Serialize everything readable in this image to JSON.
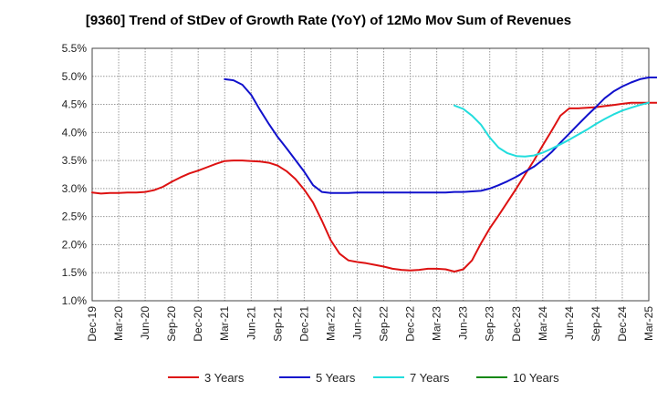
{
  "chart_data": {
    "type": "line",
    "title": "[9360]  Trend of StDev of Growth Rate (YoY) of 12Mo Mov Sum of Revenues",
    "xlabel": "",
    "ylabel": "",
    "ylim": [
      1.0,
      5.5
    ],
    "yticks": [
      "1.0%",
      "1.5%",
      "2.0%",
      "2.5%",
      "3.0%",
      "3.5%",
      "4.0%",
      "4.5%",
      "5.0%",
      "5.5%"
    ],
    "x_tick_labels": [
      "Dec-19",
      "Mar-20",
      "Jun-20",
      "Sep-20",
      "Dec-20",
      "Mar-21",
      "Jun-21",
      "Sep-21",
      "Dec-21",
      "Mar-22",
      "Jun-22",
      "Sep-22",
      "Dec-22",
      "Mar-23",
      "Jun-23",
      "Sep-23",
      "Dec-23",
      "Mar-24",
      "Jun-24",
      "Sep-24",
      "Dec-24",
      "Mar-25"
    ],
    "x_unit": "months since Dec-19",
    "grid": true,
    "legend_position": "bottom",
    "series": [
      {
        "name": "3 Years",
        "color": "#dd1111",
        "points": [
          [
            0,
            2.93
          ],
          [
            1,
            2.91
          ],
          [
            2,
            2.92
          ],
          [
            3,
            2.92
          ],
          [
            4,
            2.93
          ],
          [
            5,
            2.93
          ],
          [
            6,
            2.94
          ],
          [
            7,
            2.97
          ],
          [
            8,
            3.03
          ],
          [
            9,
            3.12
          ],
          [
            10,
            3.2
          ],
          [
            11,
            3.27
          ],
          [
            12,
            3.32
          ],
          [
            13,
            3.38
          ],
          [
            14,
            3.44
          ],
          [
            15,
            3.49
          ],
          [
            16,
            3.5
          ],
          [
            17,
            3.5
          ],
          [
            18,
            3.49
          ],
          [
            19,
            3.48
          ],
          [
            20,
            3.46
          ],
          [
            21,
            3.41
          ],
          [
            22,
            3.31
          ],
          [
            23,
            3.17
          ],
          [
            24,
            2.98
          ],
          [
            25,
            2.75
          ],
          [
            26,
            2.43
          ],
          [
            27,
            2.08
          ],
          [
            28,
            1.84
          ],
          [
            29,
            1.72
          ],
          [
            30,
            1.69
          ],
          [
            31,
            1.67
          ],
          [
            32,
            1.64
          ],
          [
            33,
            1.61
          ],
          [
            34,
            1.57
          ],
          [
            35,
            1.55
          ],
          [
            36,
            1.54
          ],
          [
            37,
            1.55
          ],
          [
            38,
            1.57
          ],
          [
            39,
            1.57
          ],
          [
            40,
            1.56
          ],
          [
            41,
            1.52
          ],
          [
            42,
            1.56
          ],
          [
            43,
            1.72
          ],
          [
            44,
            2.02
          ],
          [
            45,
            2.29
          ],
          [
            46,
            2.52
          ],
          [
            47,
            2.76
          ],
          [
            48,
            3.0
          ],
          [
            49,
            3.25
          ],
          [
            50,
            3.5
          ],
          [
            51,
            3.77
          ],
          [
            52,
            4.03
          ],
          [
            53,
            4.3
          ],
          [
            54,
            4.43
          ],
          [
            55,
            4.43
          ],
          [
            56,
            4.44
          ],
          [
            57,
            4.45
          ],
          [
            58,
            4.47
          ],
          [
            59,
            4.49
          ],
          [
            60,
            4.51
          ],
          [
            61,
            4.53
          ],
          [
            62,
            4.53
          ],
          [
            63,
            4.53
          ],
          [
            64,
            4.53
          ]
        ]
      },
      {
        "name": "5 Years",
        "color": "#1111cc",
        "points": [
          [
            15,
            4.95
          ],
          [
            16,
            4.93
          ],
          [
            17,
            4.85
          ],
          [
            18,
            4.67
          ],
          [
            19,
            4.4
          ],
          [
            20,
            4.15
          ],
          [
            21,
            3.92
          ],
          [
            22,
            3.72
          ],
          [
            23,
            3.51
          ],
          [
            24,
            3.3
          ],
          [
            25,
            3.06
          ],
          [
            26,
            2.94
          ],
          [
            27,
            2.92
          ],
          [
            28,
            2.92
          ],
          [
            29,
            2.92
          ],
          [
            30,
            2.93
          ],
          [
            31,
            2.93
          ],
          [
            32,
            2.93
          ],
          [
            33,
            2.93
          ],
          [
            34,
            2.93
          ],
          [
            35,
            2.93
          ],
          [
            36,
            2.93
          ],
          [
            37,
            2.93
          ],
          [
            38,
            2.93
          ],
          [
            39,
            2.93
          ],
          [
            40,
            2.93
          ],
          [
            41,
            2.94
          ],
          [
            42,
            2.94
          ],
          [
            43,
            2.95
          ],
          [
            44,
            2.96
          ],
          [
            45,
            3.0
          ],
          [
            46,
            3.06
          ],
          [
            47,
            3.13
          ],
          [
            48,
            3.21
          ],
          [
            49,
            3.3
          ],
          [
            50,
            3.39
          ],
          [
            51,
            3.51
          ],
          [
            52,
            3.65
          ],
          [
            53,
            3.82
          ],
          [
            54,
            3.98
          ],
          [
            55,
            4.14
          ],
          [
            56,
            4.3
          ],
          [
            57,
            4.45
          ],
          [
            58,
            4.61
          ],
          [
            59,
            4.73
          ],
          [
            60,
            4.82
          ],
          [
            61,
            4.89
          ],
          [
            62,
            4.95
          ],
          [
            63,
            4.98
          ],
          [
            64,
            4.98
          ]
        ]
      },
      {
        "name": "7 Years",
        "color": "#22dddd",
        "points": [
          [
            41,
            4.48
          ],
          [
            42,
            4.42
          ],
          [
            43,
            4.3
          ],
          [
            44,
            4.14
          ],
          [
            45,
            3.91
          ],
          [
            46,
            3.73
          ],
          [
            47,
            3.63
          ],
          [
            48,
            3.58
          ],
          [
            49,
            3.57
          ],
          [
            50,
            3.59
          ],
          [
            51,
            3.64
          ],
          [
            52,
            3.71
          ],
          [
            53,
            3.79
          ],
          [
            54,
            3.87
          ],
          [
            55,
            3.96
          ],
          [
            56,
            4.05
          ],
          [
            57,
            4.15
          ],
          [
            58,
            4.24
          ],
          [
            59,
            4.32
          ],
          [
            60,
            4.39
          ],
          [
            61,
            4.44
          ],
          [
            62,
            4.49
          ],
          [
            63,
            4.53
          ]
        ]
      },
      {
        "name": "10 Years",
        "color": "#118811",
        "points": []
      }
    ]
  }
}
